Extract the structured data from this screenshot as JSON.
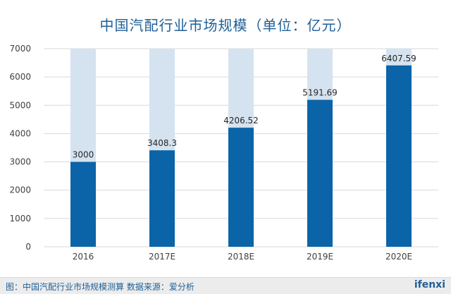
{
  "chart_data": {
    "type": "bar",
    "title": "中国汽配行业市场规模（单位：亿元）",
    "categories": [
      "2016",
      "2017E",
      "2018E",
      "2019E",
      "2020E"
    ],
    "values": [
      3000,
      3408.3,
      4206.52,
      5191.69,
      6407.59
    ],
    "data_labels": [
      "3000",
      "3408.3",
      "4206.52",
      "5191.69",
      "6407.59"
    ],
    "ylim": [
      0,
      7000
    ],
    "yticks": [
      "0",
      "1000",
      "2000",
      "3000",
      "4000",
      "5000",
      "6000",
      "7000"
    ],
    "grid": true,
    "background_bars": true
  },
  "colors": {
    "bar": "#0b64a8",
    "background_bar": "#d5e3f0",
    "title": "#1f5f97",
    "grid": "#d9d9d9"
  },
  "footer": {
    "caption": "图：中国汽配行业市场规模测算   数据来源：爱分析",
    "logo": "ifenxi"
  }
}
